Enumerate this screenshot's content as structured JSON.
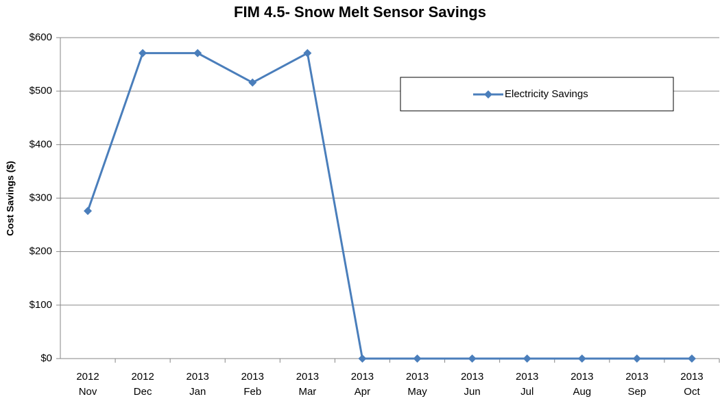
{
  "chart_data": {
    "type": "line",
    "title": "FIM 4.5- Snow Melt Sensor Savings",
    "y_label": "Cost Savings ($)",
    "categories": [
      [
        "2012",
        "Nov"
      ],
      [
        "2012",
        "Dec"
      ],
      [
        "2013",
        "Jan"
      ],
      [
        "2013",
        "Feb"
      ],
      [
        "2013",
        "Mar"
      ],
      [
        "2013",
        "Apr"
      ],
      [
        "2013",
        "May"
      ],
      [
        "2013",
        "Jun"
      ],
      [
        "2013",
        "Jul"
      ],
      [
        "2013",
        "Aug"
      ],
      [
        "2013",
        "Sep"
      ],
      [
        "2013",
        "Oct"
      ]
    ],
    "series": [
      {
        "name": "Electricity Savings",
        "color": "#4a7ebb",
        "values": [
          276,
          571,
          571,
          516,
          571,
          0,
          0,
          0,
          0,
          0,
          0,
          0
        ]
      }
    ],
    "ylim": [
      0,
      600
    ],
    "yticks": [
      {
        "value": 0,
        "label": "$0"
      },
      {
        "value": 100,
        "label": "$100"
      },
      {
        "value": 200,
        "label": "$200"
      },
      {
        "value": 300,
        "label": "$300"
      },
      {
        "value": 400,
        "label": "$400"
      },
      {
        "value": 500,
        "label": "$500"
      },
      {
        "value": 600,
        "label": "$600"
      }
    ],
    "grid": true,
    "legend": "upper right"
  }
}
